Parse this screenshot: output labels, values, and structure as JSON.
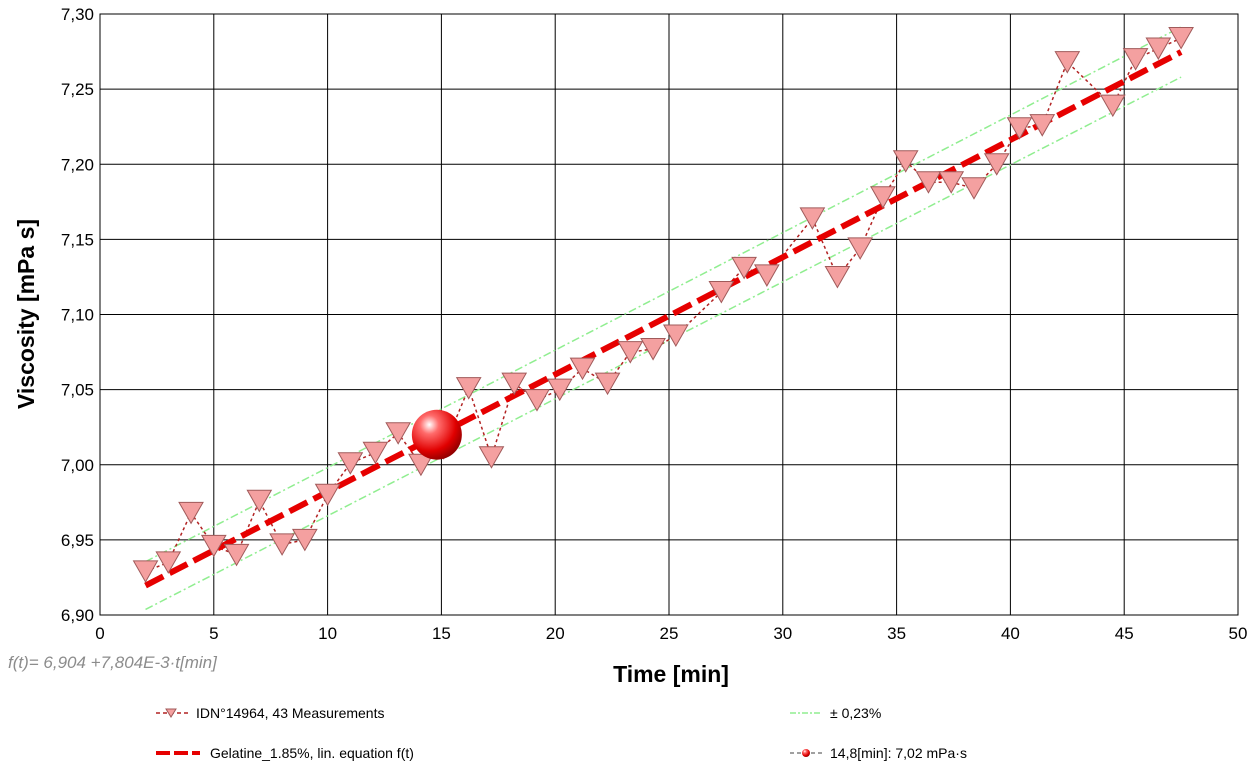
{
  "chart_data": {
    "type": "scatter",
    "title": "",
    "xlabel": "Time [min]",
    "ylabel": "Viscosity [mPa s]",
    "xlim": [
      0,
      50
    ],
    "ylim": [
      6.9,
      7.3
    ],
    "grid": true,
    "x_ticks": [
      "0",
      "5",
      "10",
      "15",
      "20",
      "25",
      "30",
      "35",
      "40",
      "45",
      "50"
    ],
    "y_ticks": [
      "6,90",
      "6,95",
      "7,00",
      "7,05",
      "7,10",
      "7,15",
      "7,20",
      "7,25",
      "7,30"
    ],
    "equation_label": "f(t)= 6,904 +7,804E-3·t[min]",
    "colors": {
      "measurement_fill": "#f4a0a0",
      "measurement_stroke": "#a05a5a",
      "measurement_line": "#b22222",
      "fit_line": "#e60000",
      "tolerance_band": "#90ee90",
      "highlight": "#e60000"
    },
    "series": [
      {
        "name": "IDN°14964, 43 Measurements",
        "style": "inverted-triangle markers, dashed line",
        "x": [
          2.0,
          3.0,
          4.0,
          5.0,
          6.0,
          7.0,
          8.0,
          9.0,
          10.0,
          11.0,
          12.1,
          13.1,
          14.1,
          15.1,
          16.2,
          17.2,
          18.2,
          19.2,
          20.2,
          21.2,
          22.3,
          23.3,
          24.3,
          25.3,
          27.3,
          28.3,
          29.3,
          31.3,
          32.4,
          33.4,
          34.4,
          35.4,
          36.4,
          37.4,
          38.4,
          39.4,
          40.4,
          41.4,
          42.5,
          44.5,
          45.5,
          46.5,
          47.5
        ],
        "y": [
          6.929,
          6.935,
          6.968,
          6.946,
          6.94,
          6.976,
          6.947,
          6.95,
          6.98,
          7.001,
          7.008,
          7.021,
          7.0,
          7.011,
          7.051,
          7.005,
          7.054,
          7.043,
          7.05,
          7.064,
          7.054,
          7.075,
          7.077,
          7.086,
          7.115,
          7.131,
          7.126,
          7.164,
          7.125,
          7.144,
          7.178,
          7.202,
          7.188,
          7.188,
          7.184,
          7.2,
          7.224,
          7.226,
          7.268,
          7.239,
          7.27,
          7.277,
          7.284
        ]
      },
      {
        "name": "Gelatine_1.85%, lin. equation f(t)",
        "style": "thick dashed line",
        "x": [
          2.0,
          47.5
        ],
        "y": [
          6.9196,
          7.2747
        ]
      },
      {
        "name": "± 0,23%",
        "style": "thin dash-dot band",
        "upper": {
          "x": [
            2.0,
            47.5
          ],
          "y": [
            6.9355,
            7.2914
          ]
        },
        "lower": {
          "x": [
            2.0,
            47.5
          ],
          "y": [
            6.9037,
            7.258
          ]
        }
      },
      {
        "name": "14,8[min]: 7,02 mPa·s",
        "style": "sphere marker",
        "x": [
          14.8
        ],
        "y": [
          7.02
        ]
      }
    ],
    "legend": {
      "placement": "bottom",
      "items": [
        {
          "label": "IDN°14964, 43 Measurements",
          "symbol": "triangle-dashed"
        },
        {
          "label": "± 0,23%",
          "symbol": "band-dashdot"
        },
        {
          "label": "Gelatine_1.85%, lin. equation f(t)",
          "symbol": "thick-dashed"
        },
        {
          "label": "14,8[min]: 7,02 mPa·s",
          "symbol": "sphere"
        }
      ]
    }
  }
}
